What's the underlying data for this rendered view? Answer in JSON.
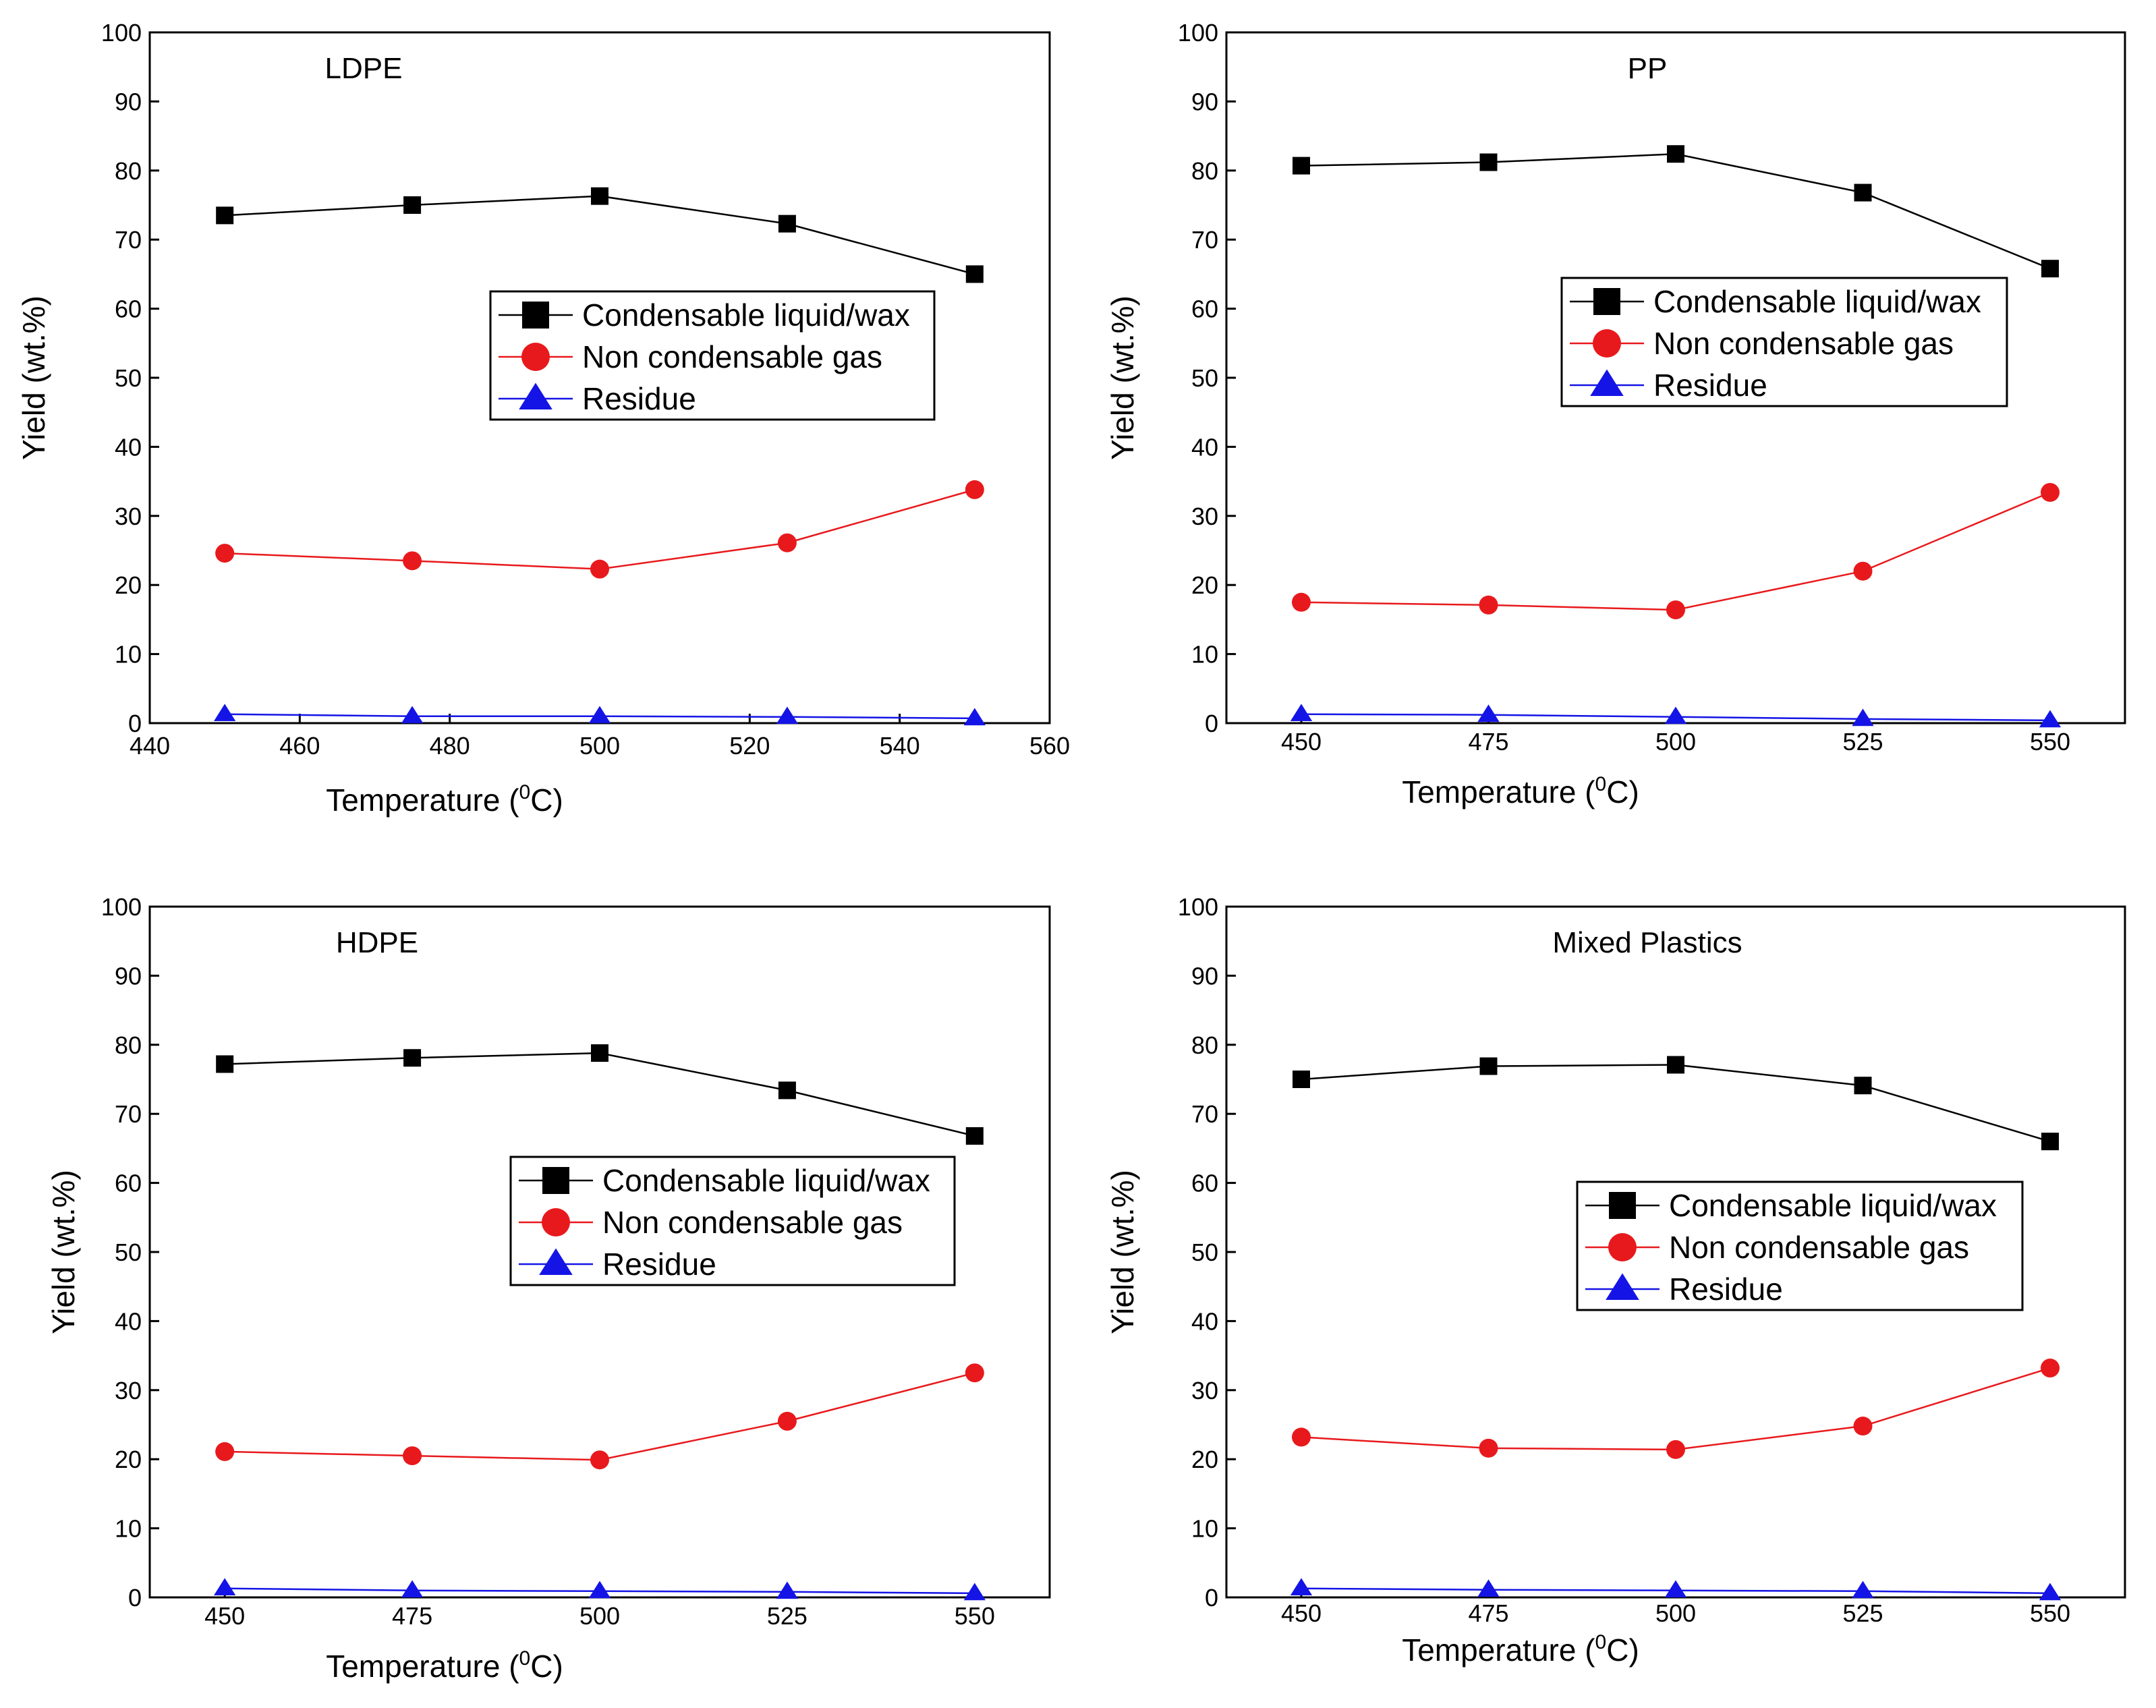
{
  "figure": {
    "legend_labels": [
      "Condensable liquid/wax",
      "Non condensable gas",
      "Residue"
    ],
    "colors": {
      "liquid": "#000000",
      "gas": "#e8191c",
      "residue": "#1414e6"
    }
  },
  "chart_data": [
    {
      "type": "line",
      "title": "LDPE",
      "xlabel": "Temperature (",
      "xlabel_sup": "0",
      "xlabel_tail": "C)",
      "ylabel": "Yield (wt.%)",
      "x": [
        450,
        475,
        500,
        525,
        550
      ],
      "xlim": [
        440,
        560
      ],
      "xticks": [
        440,
        460,
        480,
        500,
        520,
        540,
        560
      ],
      "ylim": [
        0,
        100
      ],
      "yticks": [
        0,
        10,
        20,
        30,
        40,
        50,
        60,
        70,
        80,
        90,
        100
      ],
      "legend": "center-right",
      "series": [
        {
          "name": "Condensable liquid/wax",
          "marker": "square",
          "values": [
            73.5,
            75.0,
            76.3,
            72.3,
            65.0
          ]
        },
        {
          "name": "Non condensable gas",
          "marker": "circle",
          "values": [
            24.6,
            23.5,
            22.3,
            26.1,
            33.8
          ]
        },
        {
          "name": "Residue",
          "marker": "triangle",
          "values": [
            1.3,
            1.0,
            1.0,
            0.9,
            0.7
          ]
        }
      ]
    },
    {
      "type": "line",
      "title": "PP",
      "xlabel": "Temperature (",
      "xlabel_sup": "0",
      "xlabel_tail": "C)",
      "ylabel": "Yield (wt.%)",
      "x": [
        450,
        475,
        500,
        525,
        550
      ],
      "xlim": [
        440,
        560
      ],
      "xticks": [
        450,
        475,
        500,
        525,
        550
      ],
      "ylim": [
        0,
        100
      ],
      "yticks": [
        0,
        10,
        20,
        30,
        40,
        50,
        60,
        70,
        80,
        90,
        100
      ],
      "legend": "center-right",
      "series": [
        {
          "name": "Condensable liquid/wax",
          "marker": "square",
          "values": [
            80.7,
            81.2,
            82.4,
            76.8,
            65.8
          ]
        },
        {
          "name": "Non condensable gas",
          "marker": "circle",
          "values": [
            17.5,
            17.1,
            16.4,
            22.0,
            33.4
          ]
        },
        {
          "name": "Residue",
          "marker": "triangle",
          "values": [
            1.3,
            1.2,
            0.9,
            0.6,
            0.4
          ]
        }
      ]
    },
    {
      "type": "line",
      "title": "HDPE",
      "xlabel": "Temperature (",
      "xlabel_sup": "0",
      "xlabel_tail": "C)",
      "ylabel": "Yield (wt.%)",
      "x": [
        450,
        475,
        500,
        525,
        550
      ],
      "xlim": [
        440,
        560
      ],
      "xticks": [
        450,
        475,
        500,
        525,
        550
      ],
      "ylim": [
        0,
        100
      ],
      "yticks": [
        0,
        10,
        20,
        30,
        40,
        50,
        60,
        70,
        80,
        90,
        100
      ],
      "legend": "center-right",
      "series": [
        {
          "name": "Condensable liquid/wax",
          "marker": "square",
          "values": [
            77.2,
            78.1,
            78.8,
            73.4,
            66.8
          ]
        },
        {
          "name": "Non condensable gas",
          "marker": "circle",
          "values": [
            21.1,
            20.5,
            19.9,
            25.5,
            32.5
          ]
        },
        {
          "name": "Residue",
          "marker": "triangle",
          "values": [
            1.3,
            1.0,
            0.9,
            0.8,
            0.6
          ]
        }
      ]
    },
    {
      "type": "line",
      "title": "Mixed Plastics",
      "xlabel": "Temperature (",
      "xlabel_sup": "0",
      "xlabel_tail": "C)",
      "ylabel": "Yield (wt.%)",
      "x": [
        450,
        475,
        500,
        525,
        550
      ],
      "xlim": [
        440,
        560
      ],
      "xticks": [
        450,
        475,
        500,
        525,
        550
      ],
      "ylim": [
        0,
        100
      ],
      "yticks": [
        0,
        10,
        20,
        30,
        40,
        50,
        60,
        70,
        80,
        90,
        100
      ],
      "legend": "center-right",
      "series": [
        {
          "name": "Condensable liquid/wax",
          "marker": "square",
          "values": [
            75.0,
            76.9,
            77.1,
            74.1,
            66.0
          ]
        },
        {
          "name": "Non condensable gas",
          "marker": "circle",
          "values": [
            23.2,
            21.6,
            21.4,
            24.8,
            33.2
          ]
        },
        {
          "name": "Residue",
          "marker": "triangle",
          "values": [
            1.3,
            1.1,
            1.0,
            0.9,
            0.6
          ]
        }
      ]
    }
  ]
}
